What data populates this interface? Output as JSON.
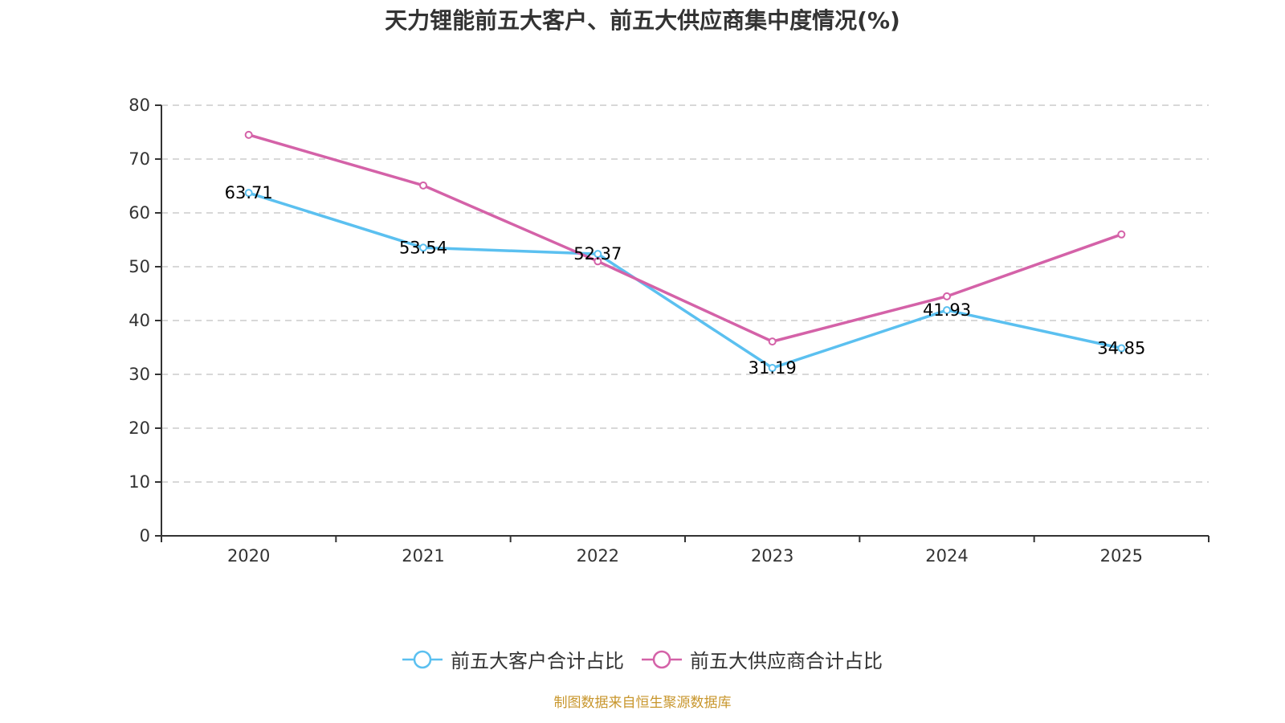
{
  "chart_data": {
    "type": "line",
    "title": "天力锂能前五大客户、前五大供应商集中度情况(%)",
    "categories": [
      "2020",
      "2021",
      "2022",
      "2023",
      "2024",
      "2025"
    ],
    "xlabel": "",
    "ylabel": "",
    "ylim": [
      0,
      80
    ],
    "yticks": [
      0,
      10,
      20,
      30,
      40,
      50,
      60,
      70,
      80
    ],
    "grid": true,
    "legend_position": "bottom-center",
    "series": [
      {
        "name": "前五大客户合计占比",
        "color": "#5bc0f0",
        "values": [
          63.71,
          53.54,
          52.37,
          31.19,
          41.93,
          34.85
        ],
        "labels": [
          "63.71",
          "53.54",
          "52.37",
          "31.19",
          "41.93",
          "34.85"
        ],
        "show_labels": true
      },
      {
        "name": "前五大供应商合计占比",
        "color": "#d462a8",
        "values": [
          74.5,
          65.1,
          51.0,
          36.1,
          44.5,
          56.0
        ],
        "show_labels": false
      }
    ]
  },
  "footer": "制图数据来自恒生聚源数据库"
}
